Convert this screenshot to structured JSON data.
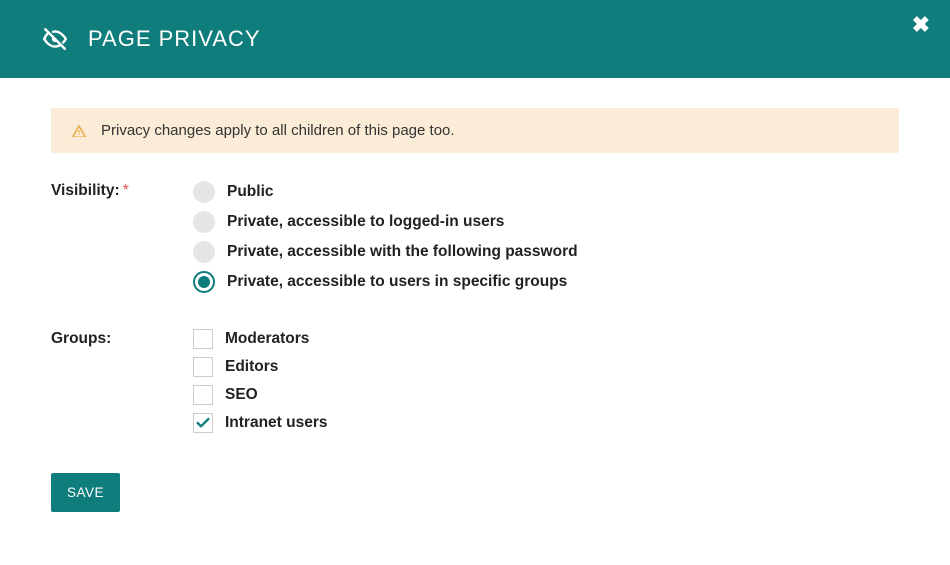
{
  "header": {
    "title": "PAGE PRIVACY"
  },
  "alert": {
    "text": "Privacy changes apply to all children of this page too."
  },
  "visibility": {
    "label": "Visibility:",
    "options": [
      {
        "label": "Public",
        "selected": false
      },
      {
        "label": "Private, accessible to logged-in users",
        "selected": false
      },
      {
        "label": "Private, accessible with the following password",
        "selected": false
      },
      {
        "label": "Private, accessible to users in specific groups",
        "selected": true
      }
    ]
  },
  "groups": {
    "label": "Groups:",
    "options": [
      {
        "label": "Moderators",
        "checked": false
      },
      {
        "label": "Editors",
        "checked": false
      },
      {
        "label": "SEO",
        "checked": false
      },
      {
        "label": "Intranet users",
        "checked": true
      }
    ]
  },
  "actions": {
    "save": "SAVE"
  },
  "colors": {
    "teal": "#0f7d7b",
    "alert_bg": "#faecd6",
    "alert_icon": "#e9b04d"
  }
}
